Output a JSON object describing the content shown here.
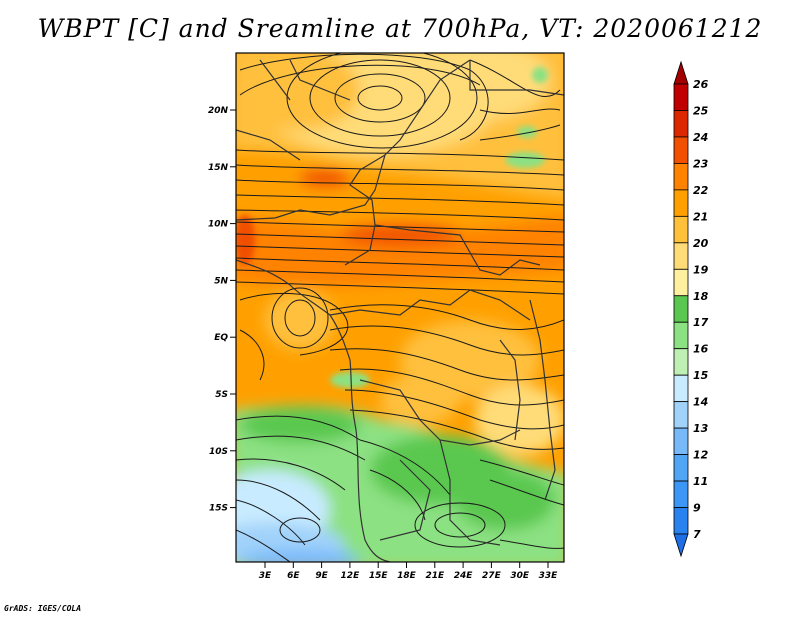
{
  "title": "WBPT [C] and Sreamline at 700hPa, VT: 2020061212",
  "credit": "GrADS: IGES/COLA",
  "map": {
    "lat_labels": [
      "20N",
      "15N",
      "10N",
      "5N",
      "EQ",
      "5S",
      "10S",
      "15S"
    ],
    "lon_labels": [
      "3E",
      "6E",
      "9E",
      "12E",
      "15E",
      "18E",
      "21E",
      "24E",
      "27E",
      "30E",
      "33E"
    ]
  },
  "colorbar": {
    "levels": [
      "7",
      "9",
      "11",
      "12",
      "13",
      "14",
      "15",
      "16",
      "17",
      "18",
      "19",
      "20",
      "21",
      "22",
      "23",
      "24",
      "25",
      "26"
    ],
    "colors": [
      "#1e6ee6",
      "#2882f0",
      "#3c96f5",
      "#50a5f5",
      "#78b9fa",
      "#a0d2fa",
      "#c8ebff",
      "#bef0b4",
      "#8ce182",
      "#5ac850",
      "#fff0a0",
      "#ffdc78",
      "#ffc03c",
      "#ffa000",
      "#ff8200",
      "#f05000",
      "#dc2800",
      "#c00000",
      "#a50000"
    ]
  },
  "legend_colors": {
    "frame": "#000000",
    "streamline": "#1a1a1a",
    "border": "#333333"
  }
}
